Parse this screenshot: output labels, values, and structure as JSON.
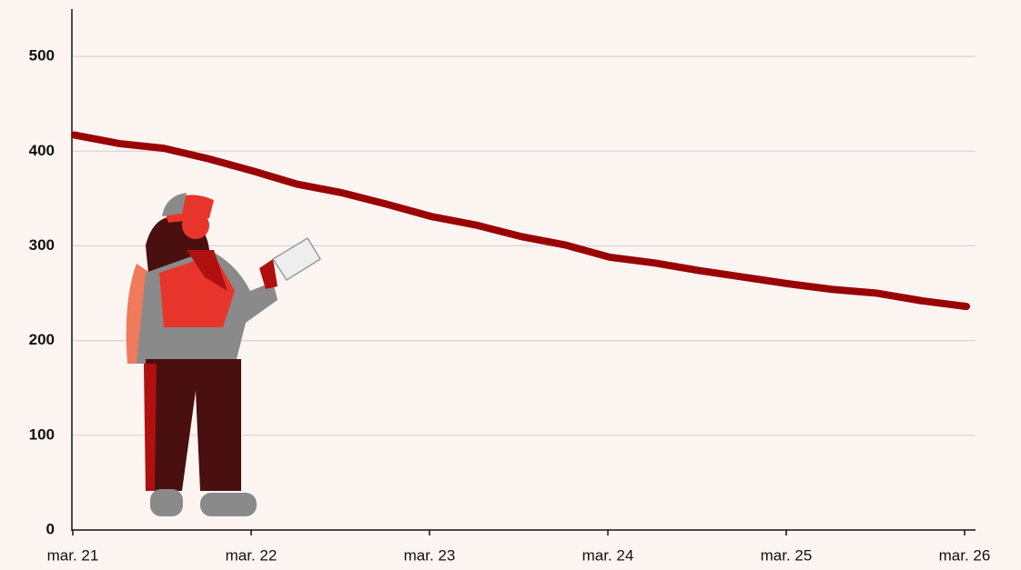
{
  "chart_data": {
    "type": "line",
    "categories": [
      "mar. 21",
      null,
      null,
      null,
      "mar. 22",
      null,
      null,
      null,
      "mar. 23",
      null,
      null,
      null,
      "mar. 24",
      null,
      null,
      null,
      "mar. 25",
      null,
      null,
      null,
      "mar. 26"
    ],
    "values": [
      417,
      408,
      403,
      392,
      379,
      365,
      356,
      344,
      331,
      322,
      310,
      301,
      288,
      282,
      274,
      267,
      260,
      254,
      250,
      242,
      236
    ],
    "color": "#990303",
    "ylim": [
      0,
      550
    ],
    "yticks": [
      0,
      100,
      200,
      300,
      400,
      500
    ],
    "grid": true
  }
}
